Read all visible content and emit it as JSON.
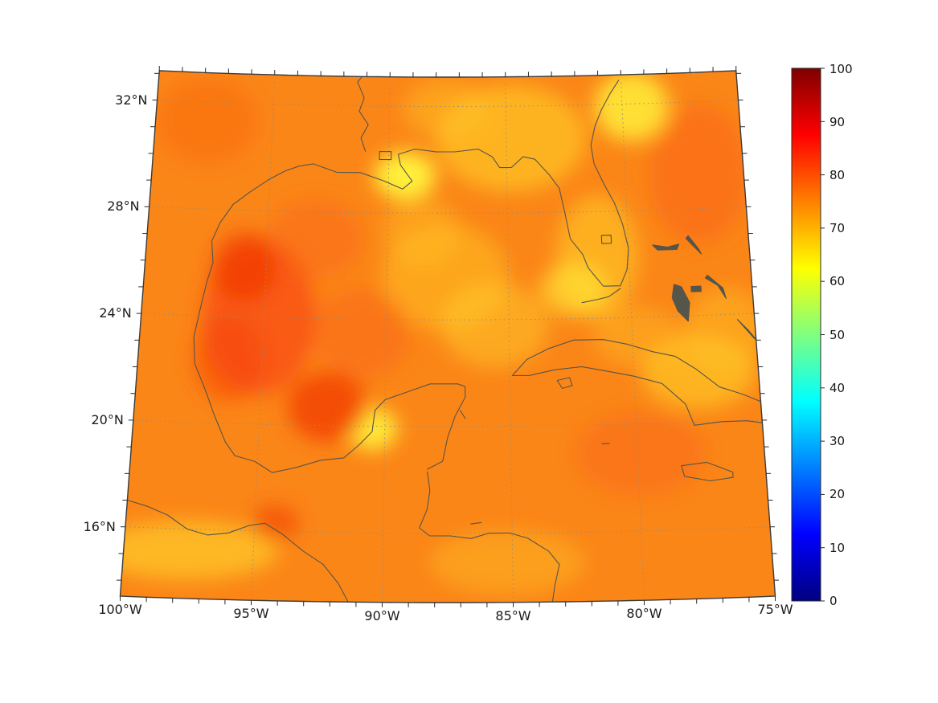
{
  "figure": {
    "background": "#ffffff"
  },
  "chart_data": {
    "type": "heatmap",
    "title": "",
    "colormap": "jet",
    "value_range": [
      0,
      100
    ],
    "map_extent": {
      "lon_min": -100,
      "lon_max": -75,
      "lat_min": 13.4,
      "lat_max": 33.1
    },
    "lon_tick_labels": [
      {
        "lon": -100,
        "label": "100°W"
      },
      {
        "lon": -95,
        "label": "95°W"
      },
      {
        "lon": -90,
        "label": "90°W"
      },
      {
        "lon": -85,
        "label": "85°W"
      },
      {
        "lon": -80,
        "label": "80°W"
      },
      {
        "lon": -75,
        "label": "75°W"
      }
    ],
    "lat_tick_labels": [
      {
        "lat": 16,
        "label": "16°N"
      },
      {
        "lat": 20,
        "label": "20°N"
      },
      {
        "lat": 24,
        "label": "24°N"
      },
      {
        "lat": 28,
        "label": "28°N"
      },
      {
        "lat": 32,
        "label": "32°N"
      }
    ],
    "grid_lons": [
      -95,
      -90,
      -85,
      -80
    ],
    "grid_lats": [
      16,
      20,
      24,
      28,
      32
    ],
    "minor_tick_step_deg": 1,
    "colorbar": {
      "min": 0,
      "max": 100,
      "tick_labels": [
        "0",
        "10",
        "20",
        "30",
        "40",
        "50",
        "60",
        "70",
        "80",
        "90",
        "100"
      ],
      "gradient_stops": [
        [
          0,
          "#00007f"
        ],
        [
          0.125,
          "#0000ff"
        ],
        [
          0.375,
          "#00ffff"
        ],
        [
          0.625,
          "#ffff00"
        ],
        [
          0.875,
          "#ff0000"
        ],
        [
          1,
          "#7f0000"
        ]
      ]
    },
    "field": {
      "base_color": "#fb8618",
      "patches": [
        {
          "lon": -89.3,
          "lat": 29.4,
          "rx": 1.3,
          "ry": 0.9,
          "color": "#fff53c",
          "alpha": 0.95
        },
        {
          "lon": -84.8,
          "lat": 30.8,
          "rx": 3.2,
          "ry": 2.0,
          "color": "#ffd22a",
          "alpha": 0.6
        },
        {
          "lon": -79.6,
          "lat": 31.9,
          "rx": 1.6,
          "ry": 1.3,
          "color": "#ffee3a",
          "alpha": 0.85
        },
        {
          "lon": -87.6,
          "lat": 25.6,
          "rx": 2.6,
          "ry": 2.0,
          "color": "#ffc526",
          "alpha": 0.5
        },
        {
          "lon": -85.6,
          "lat": 23.8,
          "rx": 2.2,
          "ry": 1.6,
          "color": "#ffd22a",
          "alpha": 0.45
        },
        {
          "lon": -81.3,
          "lat": 26.3,
          "rx": 1.7,
          "ry": 2.3,
          "color": "#ffd22a",
          "alpha": 0.55
        },
        {
          "lon": -82.3,
          "lat": 25.1,
          "rx": 1.4,
          "ry": 1.0,
          "color": "#ffec38",
          "alpha": 0.6
        },
        {
          "lon": -90.5,
          "lat": 19.9,
          "rx": 1.0,
          "ry": 0.8,
          "color": "#fff53c",
          "alpha": 0.9
        },
        {
          "lon": -97.6,
          "lat": 15.2,
          "rx": 3.6,
          "ry": 1.1,
          "color": "#ffd22a",
          "alpha": 0.65
        },
        {
          "lon": -77.4,
          "lat": 21.9,
          "rx": 2.3,
          "ry": 1.4,
          "color": "#ffd22a",
          "alpha": 0.6
        },
        {
          "lon": -79.8,
          "lat": 23.3,
          "rx": 1.8,
          "ry": 1.1,
          "color": "#ffc526",
          "alpha": 0.4
        },
        {
          "lon": -76.2,
          "lat": 23.4,
          "rx": 1.7,
          "ry": 1.6,
          "color": "#ffc526",
          "alpha": 0.45
        },
        {
          "lon": -85.2,
          "lat": 14.9,
          "rx": 3.0,
          "ry": 1.2,
          "color": "#ffc526",
          "alpha": 0.4
        },
        {
          "lon": -87.6,
          "lat": 31.9,
          "rx": 1.8,
          "ry": 1.1,
          "color": "#ffc526",
          "alpha": 0.45
        },
        {
          "lon": -88.6,
          "lat": 27.3,
          "rx": 1.6,
          "ry": 1.3,
          "color": "#ffc526",
          "alpha": 0.4
        },
        {
          "lon": -95.2,
          "lat": 24.0,
          "rx": 2.3,
          "ry": 2.9,
          "color": "#f8420a",
          "alpha": 0.65
        },
        {
          "lon": -95.9,
          "lat": 25.9,
          "rx": 1.3,
          "ry": 1.3,
          "color": "#ee2a00",
          "alpha": 0.5
        },
        {
          "lon": -96.4,
          "lat": 22.4,
          "rx": 1.4,
          "ry": 1.6,
          "color": "#f8420a",
          "alpha": 0.5
        },
        {
          "lon": -92.3,
          "lat": 20.7,
          "rx": 1.6,
          "ry": 1.3,
          "color": "#f23a04",
          "alpha": 0.75
        },
        {
          "lon": -94.2,
          "lat": 16.3,
          "rx": 0.9,
          "ry": 0.7,
          "color": "#f23a04",
          "alpha": 0.6
        },
        {
          "lon": -76.9,
          "lat": 29.3,
          "rx": 2.1,
          "ry": 2.6,
          "color": "#fa5c12",
          "alpha": 0.45
        },
        {
          "lon": -79.9,
          "lat": 18.9,
          "rx": 2.6,
          "ry": 1.6,
          "color": "#fa5c12",
          "alpha": 0.35
        },
        {
          "lon": -97.8,
          "lat": 31.3,
          "rx": 2.2,
          "ry": 1.6,
          "color": "#fa5512",
          "alpha": 0.3
        },
        {
          "lon": -91.0,
          "lat": 23.5,
          "rx": 2.0,
          "ry": 1.7,
          "color": "#fa5c12",
          "alpha": 0.4
        },
        {
          "lon": -93.0,
          "lat": 27.0,
          "rx": 2.0,
          "ry": 1.5,
          "color": "#fa5c12",
          "alpha": 0.35
        }
      ]
    },
    "coastlines": [
      {
        "name": "gulf-atlantic-coast",
        "closed": false,
        "fill": false,
        "points": [
          [
            -88.3,
            18.4
          ],
          [
            -87.7,
            18.7
          ],
          [
            -87.5,
            19.6
          ],
          [
            -87.2,
            20.4
          ],
          [
            -86.8,
            21.1
          ],
          [
            -86.8,
            21.5
          ],
          [
            -87.1,
            21.6
          ],
          [
            -88.2,
            21.6
          ],
          [
            -89.1,
            21.3
          ],
          [
            -90.0,
            21.0
          ],
          [
            -90.4,
            20.6
          ],
          [
            -90.5,
            19.8
          ],
          [
            -91.0,
            19.3
          ],
          [
            -91.6,
            18.8
          ],
          [
            -92.5,
            18.7
          ],
          [
            -93.5,
            18.4
          ],
          [
            -94.4,
            18.2
          ],
          [
            -95.1,
            18.6
          ],
          [
            -95.9,
            18.8
          ],
          [
            -96.3,
            19.3
          ],
          [
            -96.8,
            20.3
          ],
          [
            -97.2,
            21.2
          ],
          [
            -97.7,
            22.2
          ],
          [
            -97.8,
            23.2
          ],
          [
            -97.6,
            24.3
          ],
          [
            -97.4,
            25.3
          ],
          [
            -97.2,
            26.0
          ],
          [
            -97.3,
            26.8
          ],
          [
            -97.0,
            27.5
          ],
          [
            -96.5,
            28.2
          ],
          [
            -95.8,
            28.7
          ],
          [
            -95.0,
            29.2
          ],
          [
            -94.4,
            29.5
          ],
          [
            -93.8,
            29.7
          ],
          [
            -93.2,
            29.8
          ],
          [
            -92.2,
            29.5
          ],
          [
            -91.2,
            29.5
          ],
          [
            -90.2,
            29.2
          ],
          [
            -89.4,
            28.9
          ],
          [
            -89.0,
            29.2
          ],
          [
            -89.5,
            29.8
          ],
          [
            -89.6,
            30.2
          ],
          [
            -88.9,
            30.4
          ],
          [
            -88.0,
            30.3
          ],
          [
            -87.2,
            30.3
          ],
          [
            -86.2,
            30.4
          ],
          [
            -85.6,
            30.1
          ],
          [
            -85.3,
            29.7
          ],
          [
            -84.8,
            29.7
          ],
          [
            -84.3,
            30.1
          ],
          [
            -83.8,
            30.0
          ],
          [
            -83.2,
            29.4
          ],
          [
            -82.8,
            28.9
          ],
          [
            -82.6,
            28.0
          ],
          [
            -82.4,
            27.0
          ],
          [
            -81.9,
            26.4
          ],
          [
            -81.7,
            25.9
          ],
          [
            -81.1,
            25.2
          ],
          [
            -80.4,
            25.2
          ],
          [
            -80.1,
            25.8
          ],
          [
            -80.0,
            26.6
          ],
          [
            -80.2,
            27.5
          ],
          [
            -80.5,
            28.3
          ],
          [
            -80.9,
            29.0
          ],
          [
            -81.3,
            29.8
          ],
          [
            -81.4,
            30.5
          ],
          [
            -81.2,
            31.2
          ],
          [
            -80.9,
            31.8
          ],
          [
            -80.5,
            32.4
          ],
          [
            -80.1,
            32.9
          ]
        ]
      },
      {
        "name": "pacific-coast",
        "closed": false,
        "fill": false,
        "points": [
          [
            -100.0,
            17.0
          ],
          [
            -99.2,
            16.8
          ],
          [
            -98.4,
            16.5
          ],
          [
            -97.6,
            16.0
          ],
          [
            -96.8,
            15.8
          ],
          [
            -96.0,
            15.9
          ],
          [
            -95.2,
            16.2
          ],
          [
            -94.6,
            16.3
          ],
          [
            -93.9,
            15.9
          ],
          [
            -93.1,
            15.3
          ],
          [
            -92.3,
            14.8
          ],
          [
            -91.7,
            14.1
          ],
          [
            -91.3,
            13.4
          ]
        ]
      },
      {
        "name": "central-america-caribbean-coast",
        "closed": false,
        "fill": false,
        "points": [
          [
            -88.3,
            18.3
          ],
          [
            -88.2,
            17.6
          ],
          [
            -88.3,
            16.9
          ],
          [
            -88.6,
            16.2
          ],
          [
            -88.2,
            15.9
          ],
          [
            -87.4,
            15.9
          ],
          [
            -86.6,
            15.8
          ],
          [
            -85.9,
            16.0
          ],
          [
            -85.1,
            16.0
          ],
          [
            -84.4,
            15.8
          ],
          [
            -83.6,
            15.3
          ],
          [
            -83.2,
            14.8
          ],
          [
            -83.4,
            14.0
          ],
          [
            -83.5,
            13.4
          ]
        ]
      },
      {
        "name": "cuba",
        "closed": true,
        "fill": false,
        "points": [
          [
            -84.9,
            21.9
          ],
          [
            -84.3,
            22.5
          ],
          [
            -83.4,
            22.9
          ],
          [
            -82.4,
            23.2
          ],
          [
            -81.2,
            23.2
          ],
          [
            -80.2,
            23.0
          ],
          [
            -79.2,
            22.7
          ],
          [
            -78.3,
            22.5
          ],
          [
            -77.5,
            22.0
          ],
          [
            -76.6,
            21.3
          ],
          [
            -75.7,
            21.0
          ],
          [
            -75.0,
            20.7
          ],
          [
            -75.0,
            19.9
          ],
          [
            -75.6,
            20.0
          ],
          [
            -76.6,
            20.0
          ],
          [
            -77.7,
            19.9
          ],
          [
            -78.0,
            20.7
          ],
          [
            -78.9,
            21.5
          ],
          [
            -80.0,
            21.8
          ],
          [
            -81.0,
            22.0
          ],
          [
            -82.1,
            22.2
          ],
          [
            -83.2,
            22.1
          ],
          [
            -84.2,
            21.9
          ]
        ]
      },
      {
        "name": "isla-de-la-juventud",
        "closed": true,
        "fill": false,
        "points": [
          [
            -83.1,
            21.7
          ],
          [
            -82.6,
            21.8
          ],
          [
            -82.5,
            21.5
          ],
          [
            -82.9,
            21.4
          ]
        ]
      },
      {
        "name": "jamaica",
        "closed": true,
        "fill": false,
        "points": [
          [
            -78.3,
            18.4
          ],
          [
            -77.3,
            18.5
          ],
          [
            -76.3,
            18.1
          ],
          [
            -76.3,
            17.9
          ],
          [
            -77.2,
            17.8
          ],
          [
            -78.2,
            18.0
          ]
        ]
      },
      {
        "name": "grand-bahama",
        "closed": true,
        "fill": true,
        "points": [
          [
            -79.0,
            26.7
          ],
          [
            -78.4,
            26.6
          ],
          [
            -77.9,
            26.7
          ],
          [
            -78.0,
            26.5
          ],
          [
            -78.8,
            26.5
          ]
        ]
      },
      {
        "name": "abaco",
        "closed": true,
        "fill": true,
        "points": [
          [
            -77.5,
            27.0
          ],
          [
            -77.1,
            26.5
          ],
          [
            -77.0,
            26.3
          ],
          [
            -77.3,
            26.6
          ],
          [
            -77.6,
            26.9
          ]
        ]
      },
      {
        "name": "andros",
        "closed": true,
        "fill": true,
        "points": [
          [
            -78.2,
            25.2
          ],
          [
            -77.9,
            25.1
          ],
          [
            -77.6,
            24.5
          ],
          [
            -77.7,
            23.8
          ],
          [
            -78.1,
            24.2
          ],
          [
            -78.3,
            24.7
          ]
        ]
      },
      {
        "name": "eleuthera",
        "closed": true,
        "fill": true,
        "points": [
          [
            -76.8,
            25.5
          ],
          [
            -76.2,
            25.0
          ],
          [
            -76.1,
            24.6
          ],
          [
            -76.4,
            25.1
          ],
          [
            -76.9,
            25.4
          ]
        ]
      },
      {
        "name": "new-providence",
        "closed": true,
        "fill": true,
        "points": [
          [
            -77.5,
            25.1
          ],
          [
            -77.1,
            25.1
          ],
          [
            -77.1,
            24.9
          ],
          [
            -77.5,
            24.9
          ]
        ]
      },
      {
        "name": "long-island-bahamas",
        "closed": true,
        "fill": true,
        "points": [
          [
            -75.7,
            23.8
          ],
          [
            -75.1,
            23.1
          ],
          [
            -74.9,
            22.9
          ],
          [
            -75.3,
            23.4
          ]
        ]
      },
      {
        "name": "florida-keys",
        "closed": false,
        "fill": false,
        "points": [
          [
            -80.4,
            25.1
          ],
          [
            -80.9,
            24.8
          ],
          [
            -81.4,
            24.7
          ],
          [
            -82.0,
            24.6
          ]
        ]
      },
      {
        "name": "cayman-islands",
        "closed": false,
        "fill": false,
        "points": [
          [
            -81.4,
            19.3
          ],
          [
            -81.1,
            19.3
          ]
        ]
      },
      {
        "name": "cozumel",
        "closed": false,
        "fill": false,
        "points": [
          [
            -87.0,
            20.6
          ],
          [
            -86.8,
            20.3
          ]
        ]
      },
      {
        "name": "bay-islands-roatan",
        "closed": false,
        "fill": false,
        "points": [
          [
            -86.6,
            16.35
          ],
          [
            -86.2,
            16.4
          ]
        ]
      },
      {
        "name": "lake-okeechobee",
        "closed": true,
        "fill": false,
        "points": [
          [
            -81.1,
            27.1
          ],
          [
            -80.7,
            27.1
          ],
          [
            -80.7,
            26.8
          ],
          [
            -81.1,
            26.8
          ]
        ]
      },
      {
        "name": "lake-pontchartrain",
        "closed": true,
        "fill": false,
        "points": [
          [
            -90.4,
            30.3
          ],
          [
            -89.9,
            30.3
          ],
          [
            -89.9,
            30.0
          ],
          [
            -90.4,
            30.0
          ]
        ]
      },
      {
        "name": "mississippi-river",
        "closed": false,
        "fill": false,
        "points": [
          [
            -91.0,
            30.3
          ],
          [
            -91.2,
            30.8
          ],
          [
            -90.9,
            31.3
          ],
          [
            -91.3,
            31.8
          ],
          [
            -91.1,
            32.3
          ],
          [
            -91.4,
            32.9
          ],
          [
            -91.2,
            33.1
          ]
        ]
      }
    ]
  }
}
